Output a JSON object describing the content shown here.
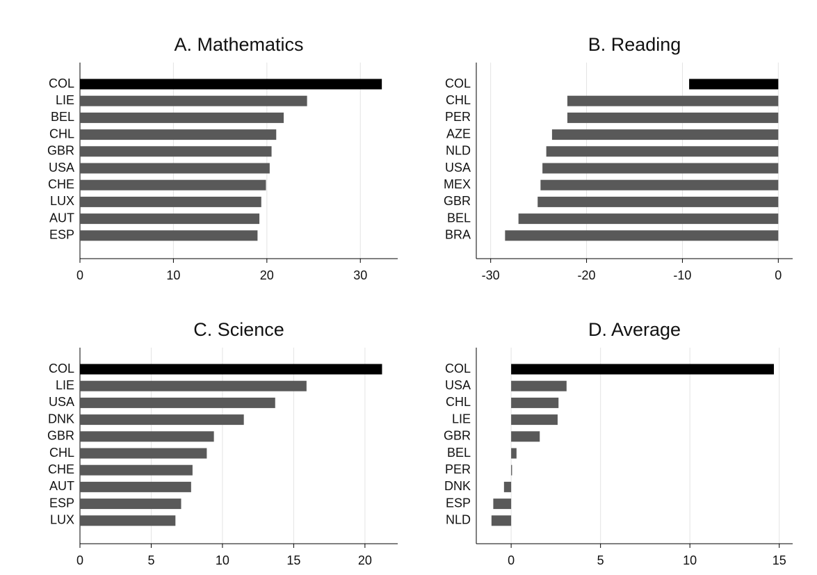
{
  "chart_data": [
    {
      "type": "bar",
      "title": "A. Mathematics",
      "categories": [
        "COL",
        "LIE",
        "BEL",
        "CHL",
        "GBR",
        "USA",
        "CHE",
        "LUX",
        "AUT",
        "ESP"
      ],
      "values": [
        32.3,
        24.3,
        21.8,
        21.0,
        20.5,
        20.3,
        19.9,
        19.4,
        19.2,
        19.0
      ],
      "colors": [
        "#000000",
        "#595959",
        "#595959",
        "#595959",
        "#595959",
        "#595959",
        "#595959",
        "#595959",
        "#595959",
        "#595959"
      ],
      "xlim": [
        0,
        34
      ],
      "xticks": [
        0,
        10,
        20,
        30
      ],
      "grid": true
    },
    {
      "type": "bar",
      "title": "B. Reading",
      "categories": [
        "COL",
        "CHL",
        "PER",
        "AZE",
        "NLD",
        "USA",
        "MEX",
        "GBR",
        "BEL",
        "BRA"
      ],
      "values": [
        -9.3,
        -22.0,
        -22.0,
        -23.6,
        -24.2,
        -24.6,
        -24.8,
        -25.1,
        -27.1,
        -28.5
      ],
      "colors": [
        "#000000",
        "#595959",
        "#595959",
        "#595959",
        "#595959",
        "#595959",
        "#595959",
        "#595959",
        "#595959",
        "#595959"
      ],
      "xlim": [
        -31.5,
        1.5
      ],
      "xticks": [
        -30,
        -20,
        -10,
        0
      ],
      "grid": true
    },
    {
      "type": "bar",
      "title": "C. Science",
      "categories": [
        "COL",
        "LIE",
        "USA",
        "DNK",
        "GBR",
        "CHL",
        "CHE",
        "AUT",
        "ESP",
        "LUX"
      ],
      "values": [
        21.2,
        15.9,
        13.7,
        11.5,
        9.4,
        8.9,
        7.9,
        7.8,
        7.1,
        6.7
      ],
      "colors": [
        "#000000",
        "#595959",
        "#595959",
        "#595959",
        "#595959",
        "#595959",
        "#595959",
        "#595959",
        "#595959",
        "#595959"
      ],
      "xlim": [
        0,
        22.3
      ],
      "xticks": [
        0,
        5,
        10,
        15,
        20
      ],
      "grid": true
    },
    {
      "type": "bar",
      "title": "D. Average",
      "categories": [
        "COL",
        "USA",
        "CHL",
        "LIE",
        "GBR",
        "BEL",
        "PER",
        "DNK",
        "ESP",
        "NLD"
      ],
      "values": [
        14.7,
        3.1,
        2.65,
        2.6,
        1.6,
        0.3,
        0.05,
        -0.4,
        -1.0,
        -1.1
      ],
      "colors": [
        "#000000",
        "#595959",
        "#595959",
        "#595959",
        "#595959",
        "#595959",
        "#595959",
        "#595959",
        "#595959",
        "#595959"
      ],
      "xlim": [
        -1.95,
        15.75
      ],
      "xticks": [
        0,
        5,
        10,
        15
      ],
      "grid": true
    }
  ]
}
